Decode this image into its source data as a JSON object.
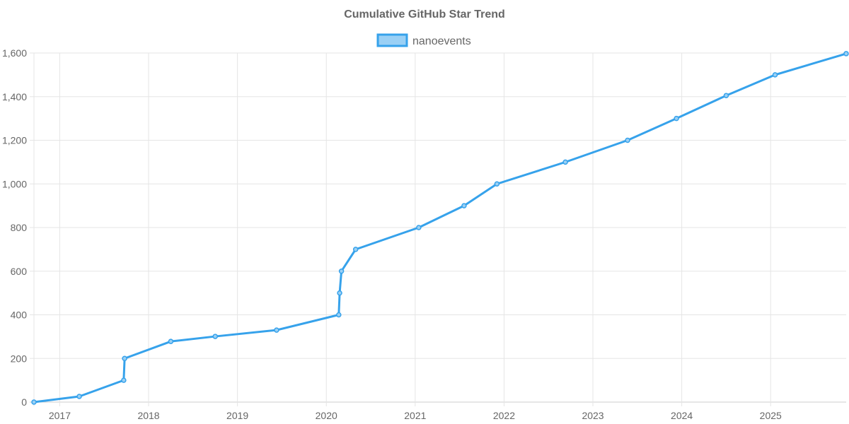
{
  "chart_data": {
    "type": "line",
    "title": "Cumulative GitHub Star Trend",
    "xlabel": "",
    "ylabel": "",
    "xlim": [
      2016.71,
      2025.85
    ],
    "ylim": [
      0,
      1600
    ],
    "grid": true,
    "legend_position": "top-center",
    "x_ticks": [
      {
        "value": 2017,
        "label": "2017"
      },
      {
        "value": 2018,
        "label": "2018"
      },
      {
        "value": 2019,
        "label": "2019"
      },
      {
        "value": 2020,
        "label": "2020"
      },
      {
        "value": 2021,
        "label": "2021"
      },
      {
        "value": 2022,
        "label": "2022"
      },
      {
        "value": 2023,
        "label": "2023"
      },
      {
        "value": 2024,
        "label": "2024"
      },
      {
        "value": 2025,
        "label": "2025"
      }
    ],
    "y_ticks": [
      {
        "value": 0,
        "label": "0"
      },
      {
        "value": 200,
        "label": "200"
      },
      {
        "value": 400,
        "label": "400"
      },
      {
        "value": 600,
        "label": "600"
      },
      {
        "value": 800,
        "label": "800"
      },
      {
        "value": 1000,
        "label": "1,000"
      },
      {
        "value": 1200,
        "label": "1,200"
      },
      {
        "value": 1400,
        "label": "1,400"
      },
      {
        "value": 1600,
        "label": "1,600"
      }
    ],
    "series": [
      {
        "name": "nanoevents",
        "color": "#36a2eb",
        "fill": "#9ad0f5",
        "x": [
          2016.71,
          2017.22,
          2017.72,
          2017.73,
          2018.25,
          2018.75,
          2019.44,
          2020.14,
          2020.15,
          2020.17,
          2020.33,
          2021.04,
          2021.55,
          2021.92,
          2022.69,
          2023.39,
          2023.94,
          2024.5,
          2025.05,
          2025.85
        ],
        "values": [
          0,
          26,
          100,
          200,
          278,
          301,
          330,
          400,
          500,
          600,
          700,
          800,
          900,
          1000,
          1100,
          1200,
          1300,
          1405,
          1500,
          1597
        ]
      }
    ]
  }
}
